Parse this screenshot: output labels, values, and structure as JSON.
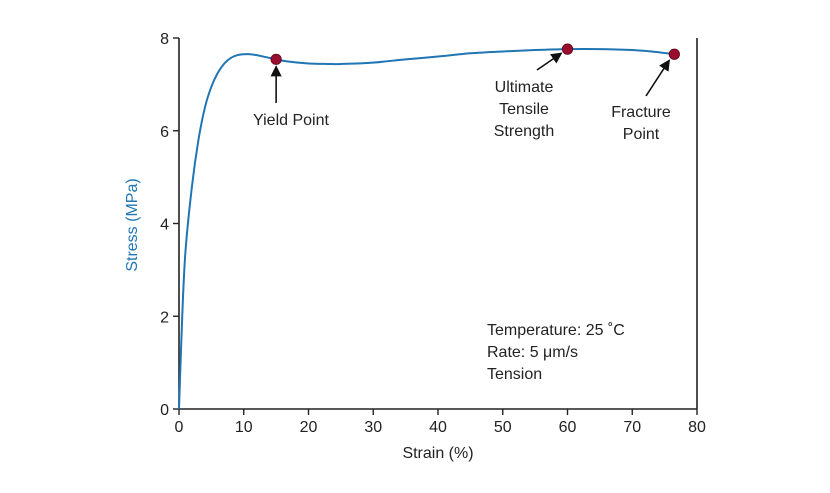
{
  "chart_data": {
    "type": "line",
    "xlabel": "Strain (%)",
    "ylabel": "Stress (MPa)",
    "xlim": [
      0,
      80
    ],
    "ylim": [
      0,
      8
    ],
    "x_ticks": [
      0,
      10,
      20,
      30,
      40,
      50,
      60,
      70,
      80
    ],
    "y_ticks": [
      0,
      2,
      4,
      6,
      8
    ],
    "grid": false,
    "series": [
      {
        "x": [
          0,
          0.5,
          1,
          2,
          3,
          4,
          5,
          6,
          7,
          8,
          9,
          10,
          11,
          12,
          13,
          14,
          15,
          17,
          20,
          23,
          25,
          30,
          35,
          40,
          45,
          50,
          55,
          60,
          65,
          70,
          73,
          76.5
        ],
        "y": [
          0,
          2.0,
          3.4,
          4.8,
          5.8,
          6.5,
          6.95,
          7.25,
          7.45,
          7.57,
          7.63,
          7.65,
          7.65,
          7.63,
          7.6,
          7.57,
          7.54,
          7.49,
          7.45,
          7.44,
          7.44,
          7.47,
          7.54,
          7.6,
          7.67,
          7.71,
          7.74,
          7.76,
          7.76,
          7.74,
          7.71,
          7.65
        ]
      }
    ],
    "markers": [
      {
        "label": "Yield Point",
        "x": 15,
        "y": 7.54
      },
      {
        "label": "Ultimate Tensile Strength",
        "x": 60,
        "y": 7.76
      },
      {
        "label": "Fracture Point",
        "x": 76.5,
        "y": 7.65
      }
    ],
    "annotations": {
      "yield": [
        "Yield Point"
      ],
      "uts": [
        "Ultimate",
        "Tensile",
        "Strength"
      ],
      "fracture": [
        "Fracture",
        "Point"
      ],
      "conditions": [
        "Temperature: 25 ˚C",
        "Rate: 5 μm/s",
        "Tension"
      ]
    },
    "colors": {
      "line": "#1f76b4",
      "marker": "#9b0d2e",
      "axis": "#222222",
      "ylabel": "#1f76b4"
    }
  }
}
